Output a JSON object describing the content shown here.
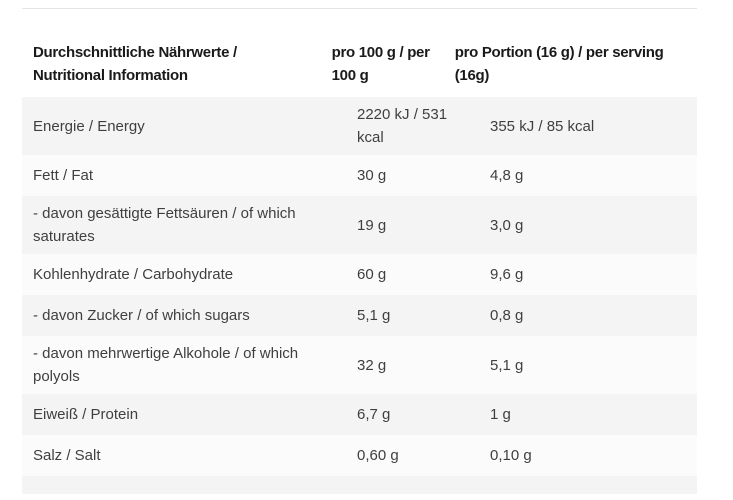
{
  "page": {
    "background": "#ffffff"
  },
  "colors": {
    "row_alt_bg": "#f4f4f4",
    "row_base_bg": "#fbfbfb",
    "top_border": "#e4e4e4",
    "header_text": "#1a1a1a",
    "body_text": "#3f3f3f"
  },
  "table": {
    "columns": [
      {
        "label": "Durchschnittliche Nährwerte / Nutritional Information"
      },
      {
        "label": "pro 100 g / per 100 g"
      },
      {
        "label": "pro Portion (16 g) / per serving (16g)"
      }
    ],
    "rows": [
      {
        "label": "Energie / Energy",
        "per_100g": "2220 kJ / 531 kcal",
        "per_serving": "355 kJ / 85 kcal"
      },
      {
        "label": "Fett / Fat",
        "per_100g": "30 g",
        "per_serving": "4,8 g"
      },
      {
        "label": "- davon gesättigte Fettsäuren / of which saturates",
        "per_100g": "19 g",
        "per_serving": "3,0 g"
      },
      {
        "label": "Kohlenhydrate / Carbohydrate",
        "per_100g": "60 g",
        "per_serving": "9,6 g"
      },
      {
        "label": "- davon Zucker / of which sugars",
        "per_100g": "5,1 g",
        "per_serving": "0,8 g"
      },
      {
        "label": "- davon mehrwertige Alkohole / of which polyols",
        "per_100g": "32 g",
        "per_serving": "5,1 g"
      },
      {
        "label": "Eiweiß / Protein",
        "per_100g": "6,7 g",
        "per_serving": "1 g"
      },
      {
        "label": "Salz / Salt",
        "per_100g": "0,60 g",
        "per_serving": "0,10 g"
      }
    ]
  }
}
